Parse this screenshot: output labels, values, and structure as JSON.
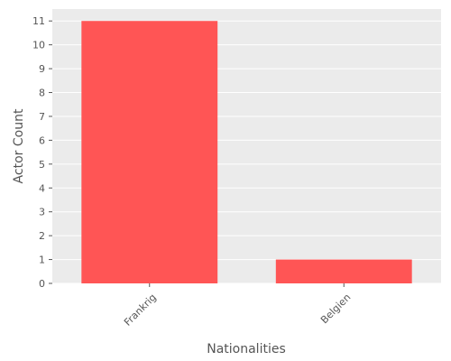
{
  "chart_data": {
    "type": "bar",
    "categories": [
      "Frankrig",
      "Belgien"
    ],
    "values": [
      11,
      1
    ],
    "title": "",
    "xlabel": "Nationalities",
    "ylabel": "Actor Count",
    "ylim": [
      0,
      11.5
    ],
    "yticks": [
      0,
      1,
      2,
      3,
      4,
      5,
      6,
      7,
      8,
      9,
      10,
      11
    ],
    "grid": true,
    "legend": "none",
    "colors": {
      "bar": "#ff5555",
      "plot_background": "#ebebeb",
      "grid": "#ffffff",
      "text": "#555555"
    }
  }
}
